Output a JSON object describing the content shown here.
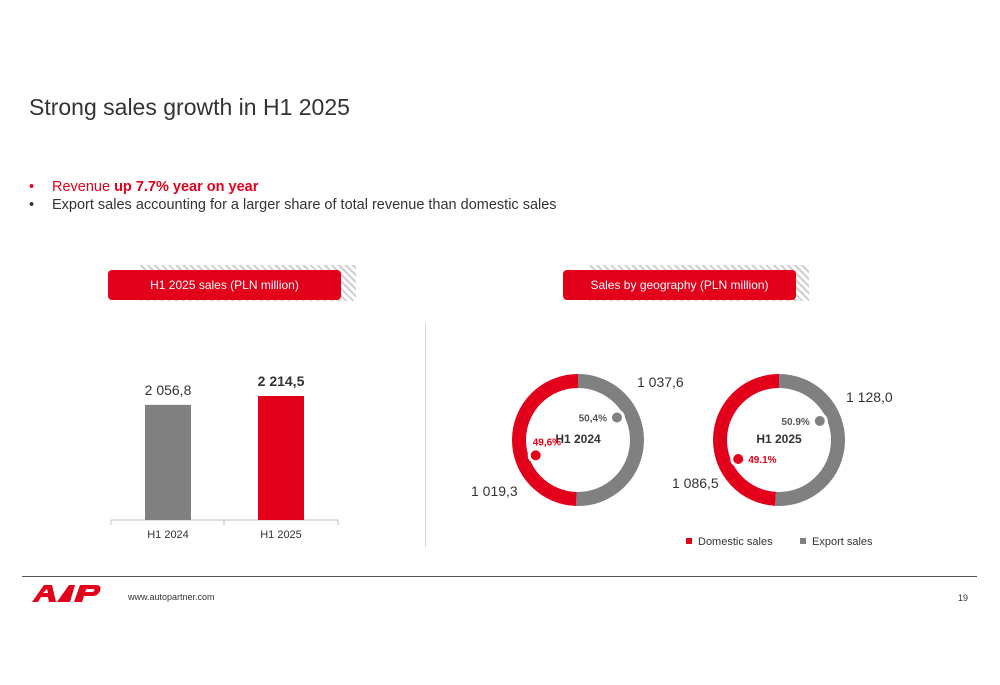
{
  "title": "Strong sales growth in H1 2025",
  "bullets": [
    {
      "prefix": "Revenue ",
      "bold": "up 7.7% year on year"
    },
    {
      "text": "Export sales accounting for a larger share of total revenue than domestic sales"
    }
  ],
  "left_header": "H1 2025 sales (PLN million)",
  "right_header": "Sales by geography (PLN million)",
  "colors": {
    "red": "#e2001a",
    "grey": "#808080",
    "text": "#333333"
  },
  "chart_data": [
    {
      "type": "bar",
      "categories": [
        "H1 2024",
        "H1 2025"
      ],
      "values": [
        2056.8,
        2214.5
      ],
      "value_labels": [
        "2 056,8",
        "2 214,5"
      ],
      "bar_colors": [
        "#808080",
        "#e2001a"
      ],
      "title": "H1 2025 sales (PLN million)"
    },
    {
      "type": "pie",
      "center_label": "H1 2024",
      "slices": [
        {
          "name": "Domestic sales",
          "value": 1019.3,
          "value_label": "1 019,3",
          "share_label": "49,6%",
          "color": "#e2001a"
        },
        {
          "name": "Export sales",
          "value": 1037.6,
          "value_label": "1 037,6",
          "share_label": "50,4%",
          "color": "#808080"
        }
      ]
    },
    {
      "type": "pie",
      "center_label": "H1 2025",
      "slices": [
        {
          "name": "Domestic sales",
          "value": 1086.5,
          "value_label": "1 086,5",
          "share_label": "49.1%",
          "color": "#e2001a"
        },
        {
          "name": "Export sales",
          "value": 1128.0,
          "value_label": "1 128,0",
          "share_label": "50.9%",
          "color": "#808080"
        }
      ]
    }
  ],
  "legend": [
    "Domestic sales",
    "Export sales"
  ],
  "footer": {
    "url": "www.autopartner.com",
    "page": "19"
  }
}
